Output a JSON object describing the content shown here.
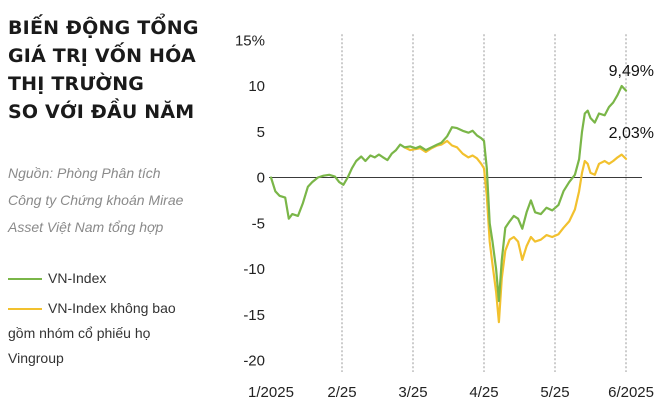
{
  "title_lines": [
    "BIẾN ĐỘNG TỔNG",
    "GIÁ TRỊ VỐN HÓA",
    "THỊ TRƯỜNG",
    "SO VỚI ĐẦU NĂM"
  ],
  "source_lines": [
    "Nguồn: Phòng Phân tích",
    "Công ty Chứng khoán Mirae",
    "Asset Việt Nam tổng hợp"
  ],
  "legend": [
    {
      "lines": [
        "VN-Index"
      ],
      "color": "#7ab648"
    },
    {
      "lines": [
        "VN-Index không bao",
        "gồm nhóm cổ phiếu họ",
        "Vingroup"
      ],
      "color": "#f2c12e"
    }
  ],
  "chart_data": {
    "type": "line",
    "x_tick_labels": [
      "1/2025",
      "2/25",
      "3/25",
      "4/25",
      "5/25",
      "6/2025"
    ],
    "y_tick_labels": [
      "15%",
      "10",
      "5",
      "0",
      "-5",
      "-10",
      "-15",
      "-20"
    ],
    "ylim": [
      -20,
      15
    ],
    "grid": "vertical dashed lines at month ticks",
    "legend_placement": "left",
    "x_positions_note": "x values are fractional month index (0 = Jan 2025, 5 = Jun 2025)",
    "series": [
      {
        "name": "VN-Index",
        "color": "#7ab648",
        "end_label": "9,49%",
        "points": [
          [
            0.0,
            0.0
          ],
          [
            0.06,
            -1.5
          ],
          [
            0.12,
            -2.0
          ],
          [
            0.2,
            -2.2
          ],
          [
            0.25,
            -4.5
          ],
          [
            0.3,
            -4.0
          ],
          [
            0.38,
            -4.2
          ],
          [
            0.45,
            -2.8
          ],
          [
            0.52,
            -1.0
          ],
          [
            0.58,
            -0.5
          ],
          [
            0.66,
            0.0
          ],
          [
            0.74,
            0.2
          ],
          [
            0.82,
            0.3
          ],
          [
            0.9,
            0.1
          ],
          [
            0.96,
            -0.5
          ],
          [
            1.02,
            -0.8
          ],
          [
            1.08,
            0.0
          ],
          [
            1.14,
            1.0
          ],
          [
            1.2,
            1.8
          ],
          [
            1.27,
            2.3
          ],
          [
            1.33,
            1.8
          ],
          [
            1.4,
            2.4
          ],
          [
            1.46,
            2.2
          ],
          [
            1.52,
            2.5
          ],
          [
            1.58,
            2.2
          ],
          [
            1.64,
            1.9
          ],
          [
            1.7,
            2.6
          ],
          [
            1.76,
            3.0
          ],
          [
            1.82,
            3.6
          ],
          [
            1.88,
            3.3
          ],
          [
            1.96,
            3.4
          ],
          [
            2.04,
            3.2
          ],
          [
            2.1,
            3.4
          ],
          [
            2.18,
            3.0
          ],
          [
            2.26,
            3.3
          ],
          [
            2.34,
            3.6
          ],
          [
            2.4,
            3.8
          ],
          [
            2.48,
            4.5
          ],
          [
            2.55,
            5.5
          ],
          [
            2.62,
            5.4
          ],
          [
            2.7,
            5.1
          ],
          [
            2.78,
            4.9
          ],
          [
            2.84,
            5.1
          ],
          [
            2.9,
            4.6
          ],
          [
            2.96,
            4.3
          ],
          [
            3.0,
            4.0
          ],
          [
            3.04,
            1.0
          ],
          [
            3.08,
            -5.0
          ],
          [
            3.12,
            -7.0
          ],
          [
            3.17,
            -10.0
          ],
          [
            3.21,
            -13.5
          ],
          [
            3.25,
            -9.0
          ],
          [
            3.3,
            -5.5
          ],
          [
            3.36,
            -4.8
          ],
          [
            3.42,
            -4.2
          ],
          [
            3.48,
            -4.5
          ],
          [
            3.54,
            -5.6
          ],
          [
            3.6,
            -3.8
          ],
          [
            3.66,
            -2.5
          ],
          [
            3.72,
            -3.8
          ],
          [
            3.8,
            -4.0
          ],
          [
            3.88,
            -3.3
          ],
          [
            3.96,
            -3.6
          ],
          [
            4.05,
            -3.0
          ],
          [
            4.12,
            -1.5
          ],
          [
            4.2,
            -0.5
          ],
          [
            4.28,
            0.3
          ],
          [
            4.34,
            2.0
          ],
          [
            4.38,
            5.0
          ],
          [
            4.42,
            7.0
          ],
          [
            4.46,
            7.3
          ],
          [
            4.5,
            6.5
          ],
          [
            4.56,
            6.0
          ],
          [
            4.62,
            7.0
          ],
          [
            4.7,
            6.8
          ],
          [
            4.76,
            7.7
          ],
          [
            4.82,
            8.2
          ],
          [
            4.88,
            9.0
          ],
          [
            4.94,
            10.0
          ],
          [
            5.0,
            9.5
          ]
        ]
      },
      {
        "name": "VN-Index không bao gồm nhóm cổ phiếu họ Vingroup",
        "color": "#f2c12e",
        "end_label": "2,03%",
        "points": [
          [
            1.88,
            3.3
          ],
          [
            1.96,
            3.0
          ],
          [
            2.04,
            3.1
          ],
          [
            2.1,
            3.2
          ],
          [
            2.18,
            2.8
          ],
          [
            2.26,
            3.2
          ],
          [
            2.34,
            3.5
          ],
          [
            2.4,
            3.6
          ],
          [
            2.48,
            4.0
          ],
          [
            2.55,
            3.5
          ],
          [
            2.62,
            3.3
          ],
          [
            2.7,
            2.6
          ],
          [
            2.78,
            2.2
          ],
          [
            2.84,
            2.4
          ],
          [
            2.9,
            2.1
          ],
          [
            2.96,
            1.5
          ],
          [
            3.0,
            1.0
          ],
          [
            3.04,
            -2.0
          ],
          [
            3.08,
            -7.0
          ],
          [
            3.12,
            -9.5
          ],
          [
            3.17,
            -12.5
          ],
          [
            3.21,
            -15.8
          ],
          [
            3.25,
            -11.0
          ],
          [
            3.3,
            -8.0
          ],
          [
            3.36,
            -6.8
          ],
          [
            3.42,
            -6.5
          ],
          [
            3.48,
            -7.0
          ],
          [
            3.54,
            -9.0
          ],
          [
            3.6,
            -7.5
          ],
          [
            3.66,
            -6.5
          ],
          [
            3.72,
            -7.0
          ],
          [
            3.8,
            -6.8
          ],
          [
            3.88,
            -6.3
          ],
          [
            3.96,
            -6.5
          ],
          [
            4.05,
            -6.2
          ],
          [
            4.12,
            -5.5
          ],
          [
            4.2,
            -4.8
          ],
          [
            4.28,
            -3.5
          ],
          [
            4.34,
            -1.5
          ],
          [
            4.38,
            0.5
          ],
          [
            4.42,
            1.8
          ],
          [
            4.46,
            1.5
          ],
          [
            4.5,
            0.5
          ],
          [
            4.56,
            0.3
          ],
          [
            4.62,
            1.5
          ],
          [
            4.7,
            1.8
          ],
          [
            4.76,
            1.5
          ],
          [
            4.82,
            1.8
          ],
          [
            4.88,
            2.2
          ],
          [
            4.94,
            2.5
          ],
          [
            5.0,
            2.03
          ]
        ]
      }
    ]
  }
}
